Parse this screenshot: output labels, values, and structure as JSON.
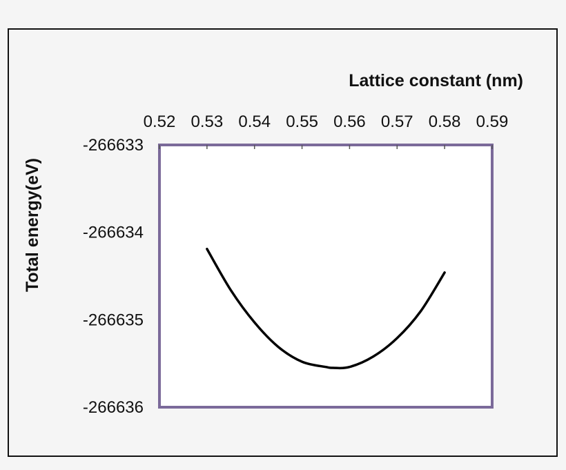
{
  "chart_data": {
    "type": "line",
    "xlabel": "Lattice constant (nm)",
    "ylabel": "Total energy(eV)",
    "xlim": [
      0.52,
      0.59
    ],
    "ylim": [
      -266636,
      -266633
    ],
    "x_ticks": [
      "0.52",
      "0.53",
      "0.54",
      "0.55",
      "0.56",
      "0.57",
      "0.58",
      "0.59"
    ],
    "y_ticks": [
      "-266633",
      "-266634",
      "-266635",
      "-266636"
    ],
    "x_axis_position": "top",
    "y_axis_inverted": true,
    "grid": false,
    "legend": "none",
    "series": [
      {
        "x": [
          0.53,
          0.535,
          0.54,
          0.545,
          0.55,
          0.555,
          0.5565,
          0.56,
          0.565,
          0.57,
          0.575,
          0.58
        ],
        "y": [
          -266634.19,
          -266634.66,
          -266635.03,
          -266635.31,
          -266635.48,
          -266635.54,
          -266635.55,
          -266635.54,
          -266635.42,
          -266635.21,
          -266634.9,
          -266634.46
        ],
        "color": "#000000"
      }
    ],
    "colors": {
      "plot_border": "#7b6a9a",
      "curve": "#000000",
      "plot_background": "#ffffff",
      "page_background": "#f5f5f5"
    }
  }
}
